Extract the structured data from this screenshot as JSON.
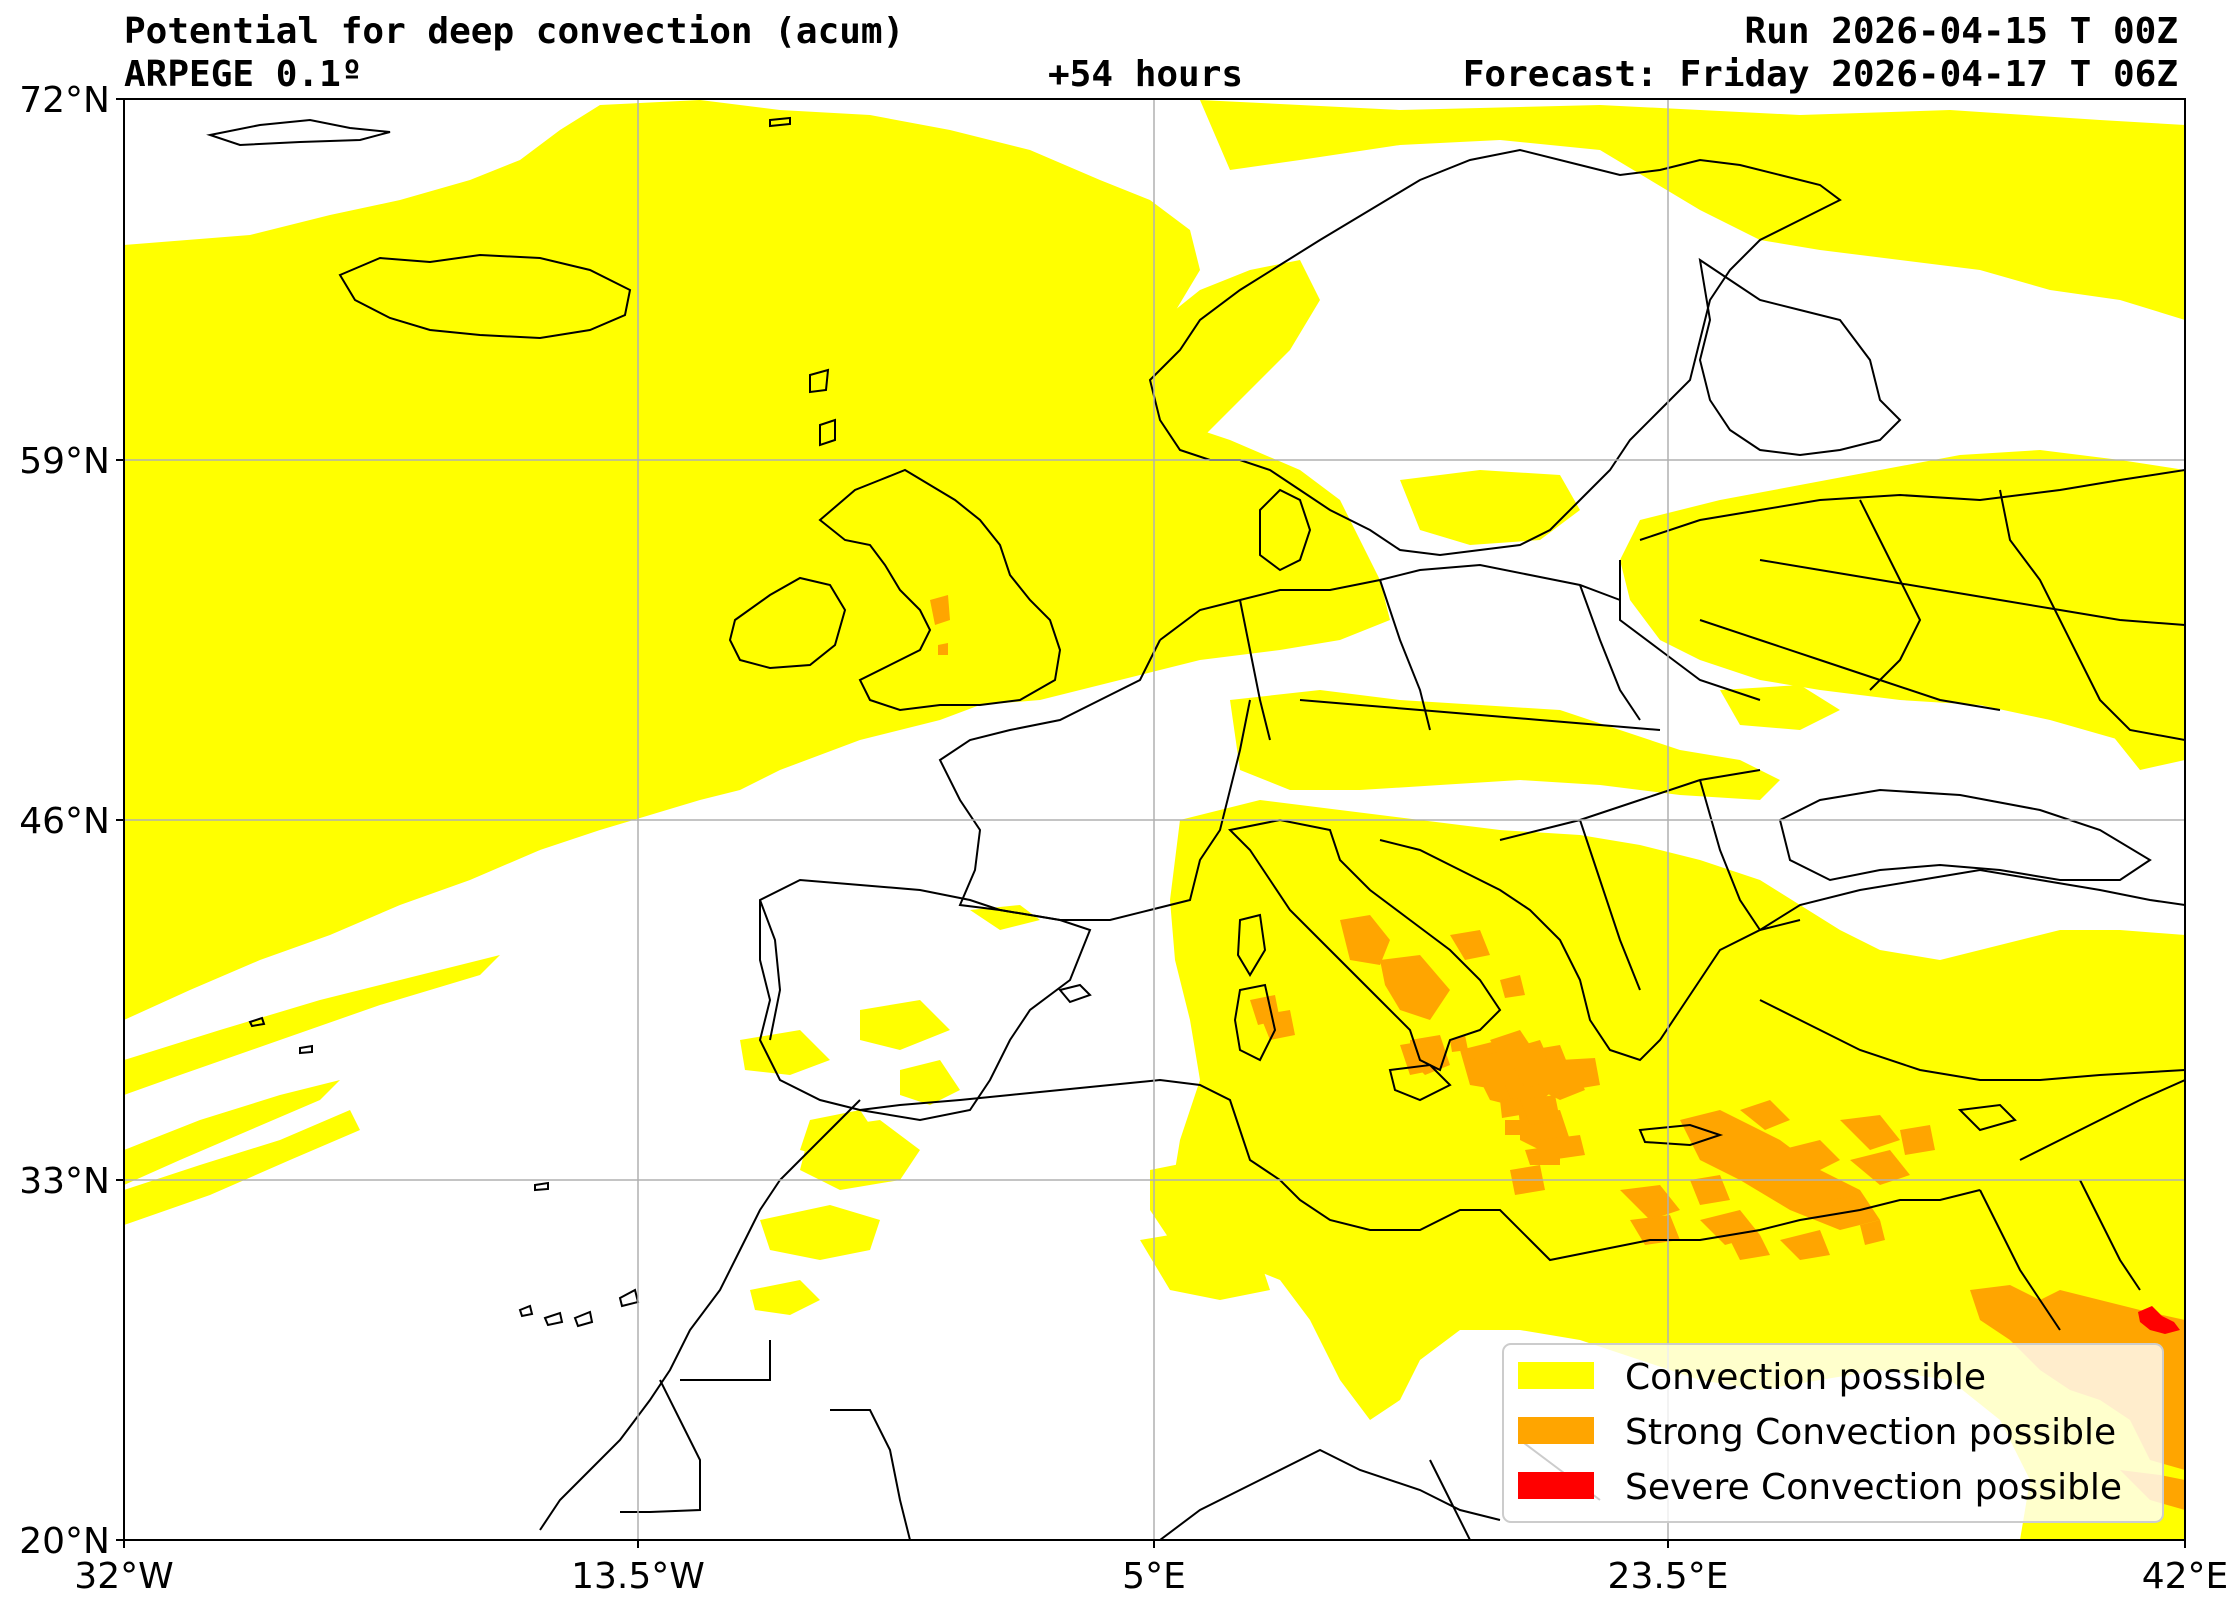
{
  "header": {
    "title": "Potential for deep convection (acum)",
    "model": "ARPEGE 0.1º",
    "lead": "+54 hours",
    "run": "Run 2026-04-15 T 00Z",
    "valid": "Forecast: Friday 2026-04-17 T 06Z"
  },
  "axes": {
    "lat_labels": [
      "72°N",
      "59°N",
      "46°N",
      "33°N",
      "20°N"
    ],
    "lon_labels": [
      "32°W",
      "13.5°W",
      "5°E",
      "23.5°E",
      "42°E"
    ],
    "lat_range": [
      20,
      72
    ],
    "lon_range": [
      -32,
      42
    ],
    "grid": true
  },
  "legend": {
    "placement": "lower-right",
    "items": [
      {
        "label": "Convection possible",
        "color": "#ffff00"
      },
      {
        "label": "Strong Convection possible",
        "color": "#ffa500"
      },
      {
        "label": "Severe Convection possible",
        "color": "#ff0000"
      }
    ]
  },
  "colors": {
    "convection": "#ffff00",
    "strong": "#ffa500",
    "severe": "#ff0000",
    "coast": "#000000",
    "grid": "#b0b0b0"
  }
}
